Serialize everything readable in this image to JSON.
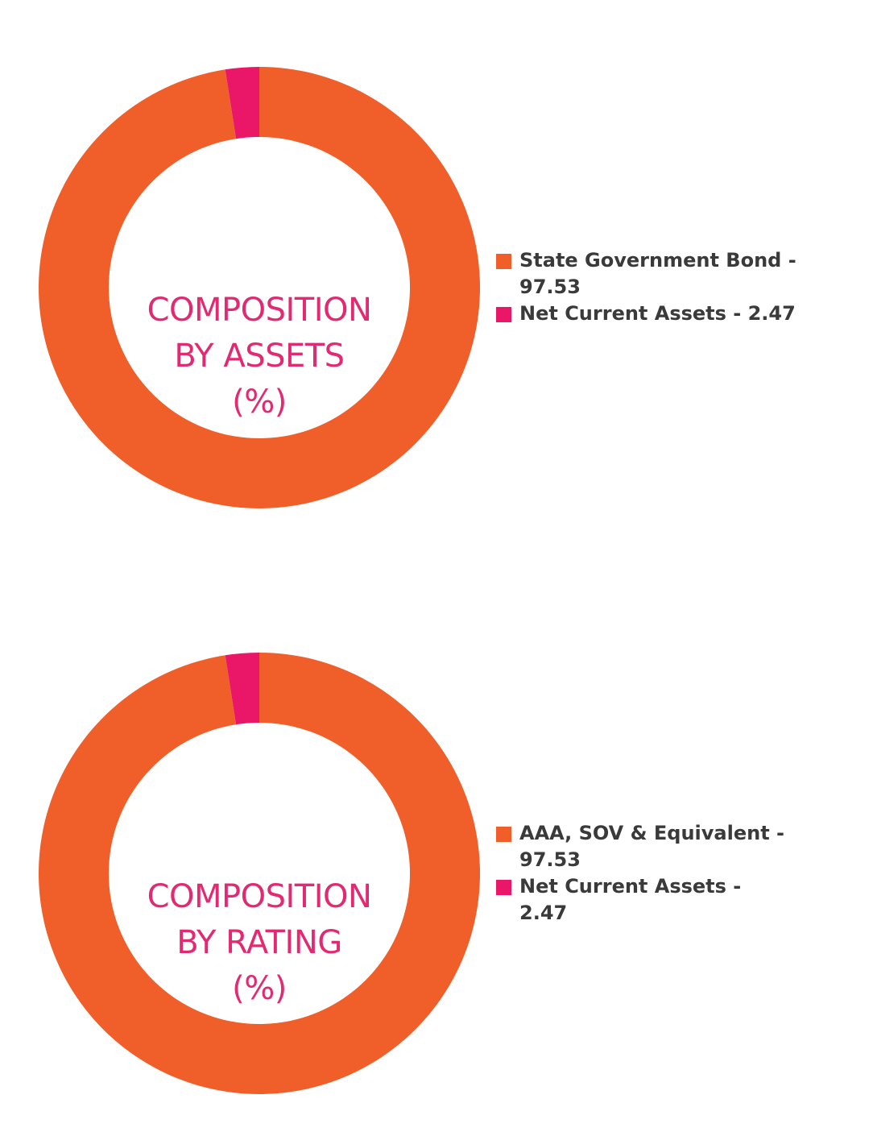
{
  "chart_data": [
    {
      "type": "pie",
      "donut": true,
      "center_label": [
        "COMPOSITION",
        "BY ASSETS",
        "(%)"
      ],
      "legend_position": "right",
      "slices": [
        {
          "label": "State Government Bond - 97.53",
          "value": 97.53,
          "color": "#f05e2a"
        },
        {
          "label": "Net Current Assets - 2.47",
          "value": 2.47,
          "color": "#ea1768"
        }
      ]
    },
    {
      "type": "pie",
      "donut": true,
      "center_label": [
        "COMPOSITION",
        "BY RATING",
        "(%)"
      ],
      "legend_position": "right",
      "slices": [
        {
          "label": "AAA, SOV & Equivalent - 97.53",
          "value": 97.53,
          "color": "#f05e2a"
        },
        {
          "label": "Net Current Assets - 2.47",
          "value": 2.47,
          "color": "#ea1768"
        }
      ]
    }
  ]
}
